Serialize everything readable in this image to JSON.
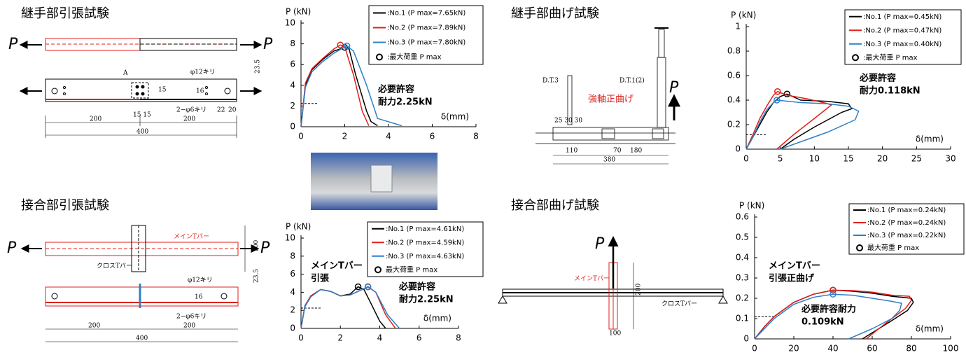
{
  "sections": [
    {
      "title": "継手部引張試験",
      "labels": [
        "P",
        "P",
        "200",
        "200",
        "400",
        "φ12キリ",
        "2−φ6キリ",
        "15",
        "16",
        "22",
        "20",
        "23.5",
        "A",
        "15 15"
      ]
    },
    {
      "title": "継手部曲げ試験",
      "labels": [
        "D.T.1(2)",
        "D.T.3",
        "強軸正曲げ",
        "P",
        "110",
        "70",
        "180",
        "380",
        "25 30 30"
      ]
    },
    {
      "title": "接合部引張試験",
      "labels": [
        "P",
        "P",
        "メインTバー",
        "クロスTバー",
        "100",
        "φ12キリ",
        "2−φ6キリ",
        "16",
        "23.5",
        "200",
        "200",
        "400"
      ]
    },
    {
      "title": "接合部曲げ試験",
      "labels": [
        "P",
        "メインTバー",
        "クロスTバー",
        "200",
        "100"
      ]
    }
  ],
  "chart_data": [
    {
      "type": "line",
      "ylabel": "P (kN)",
      "xlabel": "δ(mm)",
      "xlim": [
        0,
        8
      ],
      "ylim": [
        0,
        10
      ],
      "xticks": [
        0,
        2,
        4,
        6,
        8
      ],
      "yticks": [
        0,
        2,
        4,
        6,
        8,
        10
      ],
      "series": [
        {
          "name": ":No.1 (P max=7.65kN)",
          "color": "#000000",
          "x": [
            0,
            0.2,
            0.5,
            1,
            1.5,
            2.0,
            2.2,
            2.5,
            3.0,
            3.2,
            3.5
          ],
          "values": [
            0,
            4,
            5.5,
            6.5,
            7.3,
            7.65,
            7.5,
            5,
            1.5,
            0.5,
            0.1
          ]
        },
        {
          "name": ":No.2 (P max=7.89kN)",
          "color": "#e0201b",
          "x": [
            0,
            0.2,
            0.5,
            1,
            1.5,
            1.8,
            2.0,
            2.4,
            2.8,
            3.1
          ],
          "values": [
            0,
            4.2,
            5.6,
            6.6,
            7.5,
            7.89,
            7.7,
            5,
            1.5,
            0.1
          ]
        },
        {
          "name": ":No.3 (P max=7.80kN)",
          "color": "#2f7fc8",
          "x": [
            0,
            0.2,
            0.5,
            1,
            1.5,
            2.0,
            2.1,
            2.4,
            3.0,
            3.5,
            4.6
          ],
          "values": [
            0,
            3.8,
            5.3,
            6.3,
            7.1,
            7.7,
            7.8,
            7.3,
            4,
            0.8,
            0.1
          ]
        }
      ],
      "marker_legend": ":最大荷重 P max",
      "annotations": [
        {
          "lines": [
            "必要許容",
            "耐力2.25kN"
          ]
        }
      ],
      "required_load": 2.25
    },
    {
      "type": "line",
      "ylabel": "P (kN)",
      "xlabel": "δ(mm)",
      "xlim": [
        0,
        30
      ],
      "ylim": [
        0,
        1
      ],
      "xticks": [
        0,
        5,
        10,
        15,
        20,
        25,
        30
      ],
      "yticks": [
        0,
        0.2,
        0.4,
        0.6,
        0.8,
        1
      ],
      "series": [
        {
          "name": ":No.1 (P max=0.45kN)",
          "color": "#000000",
          "x": [
            0,
            1,
            2,
            3,
            4,
            5,
            6,
            8,
            12,
            15,
            15.5,
            14,
            10,
            7,
            5
          ],
          "values": [
            0,
            0.1,
            0.2,
            0.3,
            0.38,
            0.43,
            0.45,
            0.4,
            0.39,
            0.37,
            0.33,
            0.3,
            0.18,
            0.08,
            0
          ]
        },
        {
          "name": ":No.2 (P max=0.47kN)",
          "color": "#e0201b",
          "x": [
            0,
            1,
            2,
            3,
            4,
            4.6,
            6,
            9,
            12,
            12.5,
            10,
            7,
            4.5
          ],
          "values": [
            0,
            0.12,
            0.25,
            0.35,
            0.44,
            0.47,
            0.44,
            0.41,
            0.37,
            0.36,
            0.25,
            0.12,
            0
          ]
        },
        {
          "name": ":No.3 (P max=0.40kN)",
          "color": "#2f7fc8",
          "x": [
            0,
            1,
            2,
            3,
            4,
            4.5,
            8,
            12,
            15,
            16.5,
            16,
            12,
            8,
            5
          ],
          "values": [
            0,
            0.1,
            0.22,
            0.32,
            0.38,
            0.4,
            0.38,
            0.37,
            0.35,
            0.31,
            0.24,
            0.14,
            0.06,
            0
          ]
        }
      ],
      "marker_legend": ":最大荷重 P max",
      "annotations": [
        {
          "lines": [
            "必要許容",
            "耐力0.118kN"
          ]
        }
      ],
      "required_load": 0.118
    },
    {
      "type": "line",
      "ylabel": "P (kN)",
      "xlabel": "δ(mm)",
      "xlim": [
        0,
        8
      ],
      "ylim": [
        0,
        10
      ],
      "xticks": [
        0,
        2,
        4,
        6,
        8
      ],
      "yticks": [
        0,
        2,
        4,
        6,
        8,
        10
      ],
      "series": [
        {
          "name": ":No.1 (P max=4.61kN)",
          "color": "#000000",
          "x": [
            0,
            0.2,
            0.5,
            1,
            1.5,
            2,
            2.5,
            2.9,
            3.2,
            3.5,
            4,
            4.3
          ],
          "values": [
            0,
            2.5,
            3.6,
            4.3,
            4.1,
            3.6,
            3.8,
            4.61,
            4.3,
            3,
            0.8,
            0
          ]
        },
        {
          "name": ":No.2 (P max=4.59kN)",
          "color": "#e0201b",
          "x": [
            0,
            0.2,
            0.5,
            1,
            1.5,
            2,
            2.5,
            3,
            3.4,
            3.8,
            4.3,
            4.8
          ],
          "values": [
            0,
            2.5,
            3.6,
            4.3,
            4.1,
            3.6,
            3.7,
            4.2,
            4.59,
            4,
            1.5,
            0
          ]
        },
        {
          "name": ":No.3 (P max=4.63kN)",
          "color": "#2f7fc8",
          "x": [
            0,
            0.2,
            0.5,
            1,
            1.5,
            2,
            2.5,
            3,
            3.4,
            3.8,
            4.4,
            5
          ],
          "values": [
            0,
            2.4,
            3.5,
            4.3,
            4.1,
            3.6,
            3.7,
            4.2,
            4.63,
            4,
            1.5,
            0
          ]
        }
      ],
      "marker_legend": "最大荷重 P max",
      "annotations": [
        {
          "lines": [
            "メインTバー",
            "引張"
          ]
        },
        {
          "lines": [
            "必要許容",
            "耐力2.25kN"
          ]
        }
      ],
      "required_load": 2.25
    },
    {
      "type": "line",
      "ylabel": "P (kN)",
      "xlabel": "δ(mm)",
      "xlim": [
        0,
        100
      ],
      "ylim": [
        0,
        0.6
      ],
      "xticks": [
        0,
        20,
        40,
        60,
        80,
        100
      ],
      "yticks": [
        0,
        0.1,
        0.2,
        0.3,
        0.4,
        0.5,
        0.6
      ],
      "series": [
        {
          "name": ":No.1 (P max=0.24kN)",
          "color": "#000000",
          "x": [
            0,
            5,
            10,
            20,
            30,
            40,
            50,
            60,
            70,
            80,
            81,
            78,
            70,
            60,
            55
          ],
          "values": [
            0,
            0.06,
            0.11,
            0.18,
            0.22,
            0.24,
            0.235,
            0.225,
            0.21,
            0.2,
            0.18,
            0.14,
            0.09,
            0.03,
            0
          ]
        },
        {
          "name": ":No.2 (P max=0.24kN)",
          "color": "#e0201b",
          "x": [
            0,
            5,
            10,
            20,
            30,
            40,
            50,
            60,
            70,
            79,
            80,
            77,
            70,
            62,
            57
          ],
          "values": [
            0,
            0.06,
            0.11,
            0.18,
            0.22,
            0.24,
            0.238,
            0.23,
            0.215,
            0.21,
            0.19,
            0.15,
            0.1,
            0.04,
            0
          ]
        },
        {
          "name": ":No.3 (P max=0.22kN)",
          "color": "#2f7fc8",
          "x": [
            0,
            5,
            10,
            20,
            30,
            40,
            50,
            60,
            70,
            75,
            74,
            70,
            60,
            48
          ],
          "values": [
            0,
            0.05,
            0.1,
            0.17,
            0.205,
            0.22,
            0.215,
            0.2,
            0.185,
            0.175,
            0.14,
            0.1,
            0.05,
            0
          ]
        }
      ],
      "marker_legend": "最大荷重 P max",
      "annotations": [
        {
          "lines": [
            "メインTバー",
            "引張正曲げ"
          ]
        },
        {
          "lines": [
            "必要許容耐力",
            "0.109kN"
          ]
        }
      ],
      "required_load": 0.109
    }
  ]
}
